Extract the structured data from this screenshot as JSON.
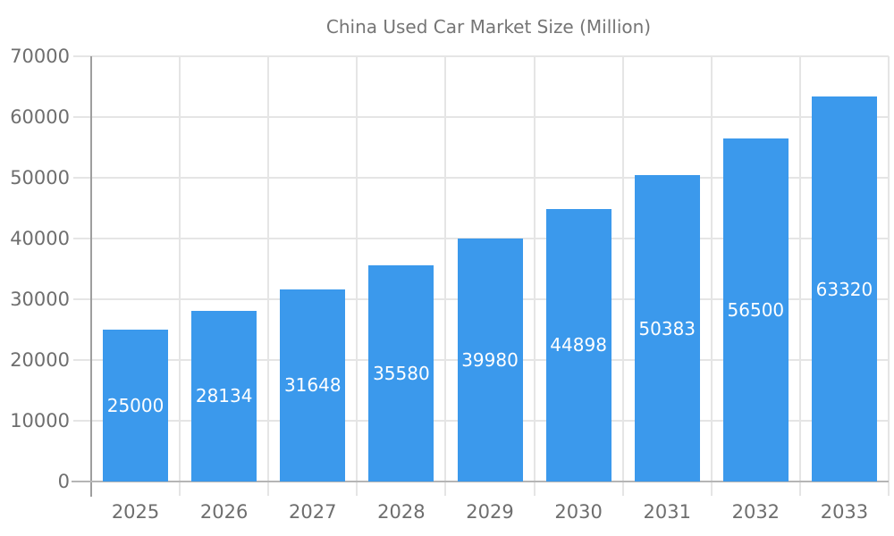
{
  "chart_data": {
    "type": "bar",
    "title": "China Used Car Market Size (Million)",
    "categories": [
      "2025",
      "2026",
      "2027",
      "2028",
      "2029",
      "2030",
      "2031",
      "2032",
      "2033"
    ],
    "series": [
      {
        "name": "China Used Car Market Size (Million)",
        "values": [
          25000,
          28134,
          31648,
          35580,
          39980,
          44898,
          50383,
          56500,
          63320
        ]
      }
    ],
    "xlabel": "",
    "ylabel": "",
    "ylim": [
      0,
      70000
    ],
    "yticks": [
      0,
      10000,
      20000,
      30000,
      40000,
      50000,
      60000,
      70000
    ],
    "grid": true,
    "legend_position": "top-center",
    "bar_labels_inside": true,
    "colors": {
      "bar": "#3b99ec",
      "bar_label": "#ffffff",
      "axis_text": "#6e6e6e",
      "legend_text": "#757575",
      "gridline": "#e5e5e5",
      "x_axis_line": "#b5b5b5",
      "y_axis_line": "#9e9e9e",
      "background": "#ffffff"
    }
  }
}
